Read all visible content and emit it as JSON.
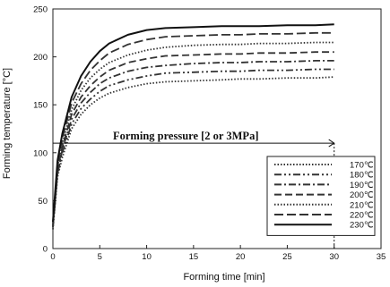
{
  "chart_data": {
    "type": "line",
    "xlabel": "Forming time [min]",
    "ylabel": "Forming temperature [°C]",
    "xlim": [
      0,
      35
    ],
    "ylim": [
      0,
      250
    ],
    "x_ticks": [
      "0",
      "5",
      "10",
      "15",
      "20",
      "25",
      "30",
      "35"
    ],
    "y_ticks": [
      "0",
      "50",
      "100",
      "150",
      "200",
      "250"
    ],
    "grid": false,
    "legend_position": "bottom-right",
    "annotation": {
      "text": "Forming pressure [2 or 3MPa]",
      "y": 110,
      "x_from": 0,
      "x_to": 30
    },
    "x": [
      0,
      0.5,
      1,
      2,
      3,
      4,
      5,
      6,
      8,
      10,
      12,
      15,
      18,
      20,
      22,
      25,
      28,
      30
    ],
    "series": [
      {
        "name": "170℃",
        "color": "#333333",
        "dash": "1.5 2",
        "values": [
          20,
          75,
          95,
          125,
          140,
          150,
          157,
          162,
          168,
          172,
          174,
          175,
          176,
          177,
          177,
          178,
          178,
          179
        ]
      },
      {
        "name": "180℃",
        "color": "#333333",
        "dash": "8 3 2 3 2 3",
        "values": [
          22,
          78,
          100,
          130,
          146,
          156,
          164,
          170,
          176,
          180,
          183,
          184,
          185,
          185,
          186,
          186,
          187,
          187
        ]
      },
      {
        "name": "190℃",
        "color": "#333333",
        "dash": "8 3 2 3",
        "values": [
          22,
          80,
          103,
          135,
          152,
          163,
          172,
          178,
          185,
          189,
          191,
          193,
          194,
          194,
          195,
          195,
          196,
          196
        ]
      },
      {
        "name": "200℃",
        "color": "#333333",
        "dash": "8 4",
        "values": [
          24,
          82,
          106,
          140,
          158,
          170,
          179,
          186,
          194,
          198,
          201,
          202,
          203,
          203,
          204,
          204,
          205,
          205
        ]
      },
      {
        "name": "210℃",
        "color": "#333333",
        "dash": "1.5 2",
        "values": [
          24,
          85,
          110,
          145,
          165,
          178,
          187,
          194,
          202,
          207,
          210,
          212,
          213,
          213,
          214,
          214,
          215,
          215
        ]
      },
      {
        "name": "220℃",
        "color": "#333333",
        "dash": "10 4",
        "values": [
          26,
          88,
          115,
          152,
          172,
          186,
          196,
          204,
          213,
          218,
          221,
          222,
          223,
          223,
          224,
          224,
          225,
          225
        ]
      },
      {
        "name": "230℃",
        "color": "#111111",
        "dash": "",
        "values": [
          28,
          92,
          120,
          158,
          180,
          195,
          206,
          214,
          223,
          228,
          230,
          231,
          232,
          232,
          232,
          233,
          233,
          234
        ]
      }
    ]
  }
}
